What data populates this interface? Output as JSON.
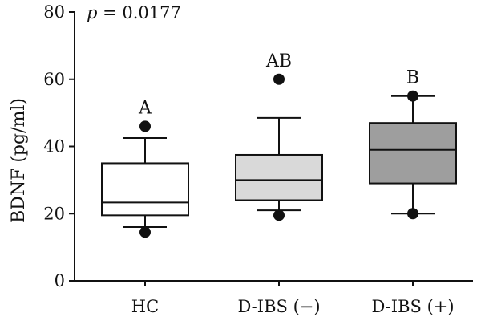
{
  "chart_data": {
    "type": "box",
    "ylabel": "BDNF (pg/ml)",
    "ylim": [
      0,
      80
    ],
    "yticks": [
      0,
      20,
      40,
      60,
      80
    ],
    "annotation": {
      "p_symbol": "p",
      "p_value": " = 0.0177"
    },
    "categories": [
      "HC",
      "D-IBS (−)",
      "D-IBS (+)"
    ],
    "groups": [
      {
        "label": "HC",
        "significance": "A",
        "fill": "#ffffff",
        "whisker_low": 16,
        "q1": 19.5,
        "median": 23.3,
        "q3": 35,
        "whisker_high": 42.5,
        "outliers": [
          14.5,
          46
        ]
      },
      {
        "label": "D-IBS (−)",
        "significance": "AB",
        "fill": "#d9d9d9",
        "whisker_low": 21,
        "q1": 24,
        "median": 30,
        "q3": 37.5,
        "whisker_high": 48.5,
        "outliers": [
          19.5,
          60
        ]
      },
      {
        "label": "D-IBS (+)",
        "significance": "B",
        "fill": "#9e9e9e",
        "whisker_low": 20,
        "q1": 29,
        "median": 39,
        "q3": 47,
        "whisker_high": 55,
        "outliers": [
          20,
          55
        ]
      }
    ]
  }
}
